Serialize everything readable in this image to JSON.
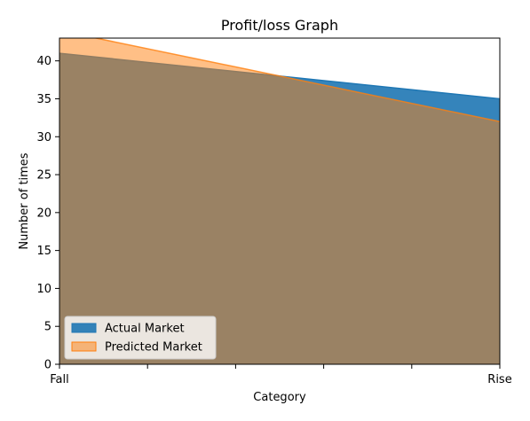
{
  "chart_data": {
    "type": "area",
    "title": "Profit/loss Graph",
    "xlabel": "Category",
    "ylabel": "Number of times",
    "x": [
      "Fall",
      "Rise"
    ],
    "xticklabels": [
      "Fall",
      "",
      "",
      "",
      "",
      "Rise"
    ],
    "series": [
      {
        "name": "Actual Market",
        "values": [
          41,
          35
        ],
        "color": "#1f77b4",
        "alpha": 0.9
      },
      {
        "name": "Predicted Market",
        "values": [
          44,
          32
        ],
        "color": "#ff7f0e",
        "alpha": 0.5
      }
    ],
    "ylim": [
      0,
      43
    ],
    "yticks": [
      0,
      5,
      10,
      15,
      20,
      25,
      30,
      35,
      40
    ],
    "grid": false,
    "legend_position": "lower-left"
  }
}
